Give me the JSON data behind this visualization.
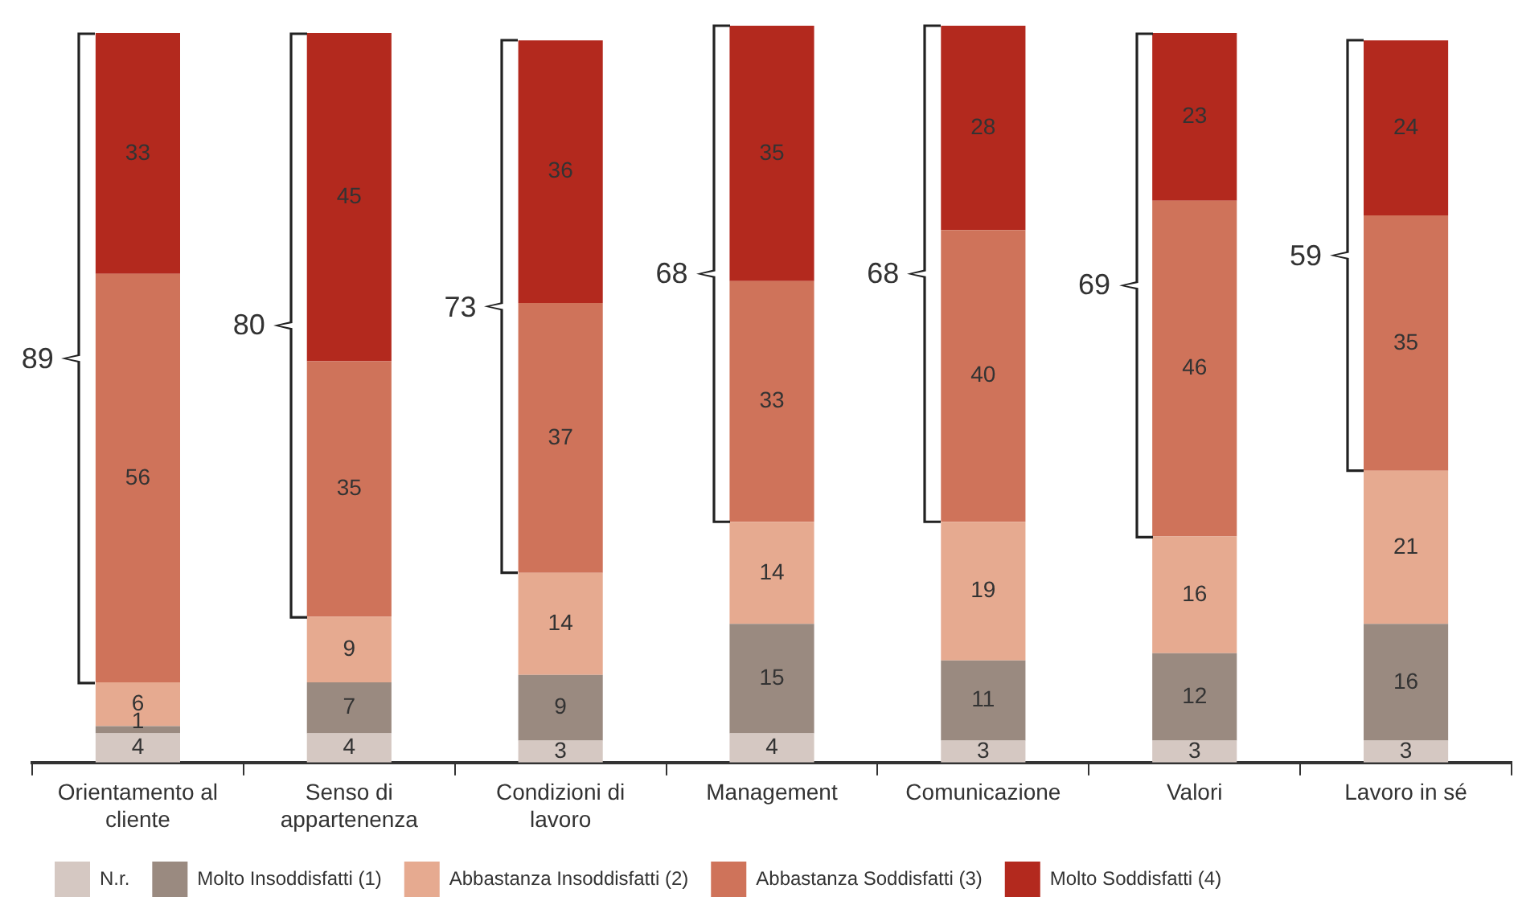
{
  "chart_data": {
    "type": "bar",
    "stacked": true,
    "data_labels": true,
    "grid": false,
    "legend": "bottom",
    "tick_labels": "x",
    "ylim": [
      0,
      101
    ],
    "categories": [
      "Orientamento al cliente",
      "Senso di appartenenza",
      "Condizioni di lavoro",
      "Management",
      "Comunicazione",
      "Valori",
      "Lavoro in sé"
    ],
    "series": [
      {
        "name": "N.r.",
        "color": "#d5c8c2",
        "values": [
          4,
          4,
          3,
          4,
          3,
          3,
          3
        ]
      },
      {
        "name": "Molto Insoddisfatti (1)",
        "color": "#9a8a80",
        "values": [
          1,
          7,
          9,
          15,
          11,
          12,
          16
        ]
      },
      {
        "name": "Abbastanza Insoddisfatti (2)",
        "color": "#e6aa90",
        "values": [
          6,
          9,
          14,
          14,
          19,
          16,
          21
        ]
      },
      {
        "name": "Abbastanza Soddisfatti (3)",
        "color": "#cf735a",
        "values": [
          56,
          35,
          37,
          33,
          40,
          46,
          35
        ]
      },
      {
        "name": "Molto Soddisfatti (4)",
        "color": "#b3291e",
        "values": [
          33,
          45,
          36,
          35,
          28,
          23,
          24
        ]
      }
    ],
    "annotations": [
      "89",
      "80",
      "73",
      "68",
      "68",
      "69",
      "59"
    ]
  }
}
